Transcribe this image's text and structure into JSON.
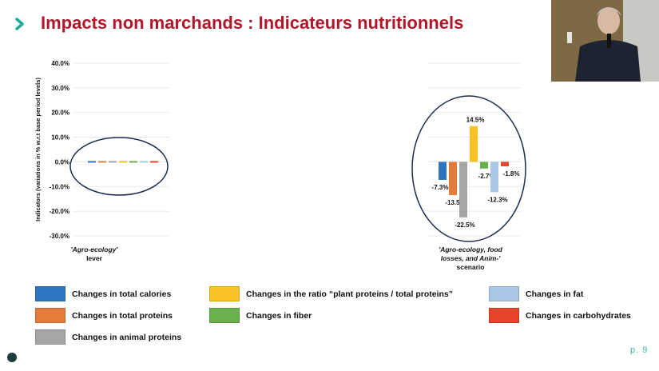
{
  "slide": {
    "title": "Impacts non marchands : Indicateurs nutritionnels",
    "page_number": "p. 9",
    "video_inset": "presenter camera"
  },
  "chart_data": [
    {
      "type": "bar",
      "ylabel": "Indicators (variations in % w.r.t base period levels)",
      "yticks": [
        "40.0%",
        "30.0%",
        "20.0%",
        "10.0%",
        "0.0%",
        "-10.0%",
        "-20.0%",
        "-30.0%"
      ],
      "ylim": [
        -30,
        40
      ],
      "category": "'Agro-ecology' lever",
      "grid": true,
      "series": [
        {
          "name": "Changes in total calories",
          "value": 0
        },
        {
          "name": "Changes in total proteins",
          "value": 0
        },
        {
          "name": "Changes in animal proteins",
          "value": 0
        },
        {
          "name": "Changes in the ratio “plant proteins / total proteins”",
          "value": 0
        },
        {
          "name": "Changes in fiber",
          "value": 0
        },
        {
          "name": "Changes in fat",
          "value": 0
        },
        {
          "name": "Changes in carbohydrates",
          "value": 0
        }
      ]
    },
    {
      "type": "bar",
      "ylim": [
        -30,
        40
      ],
      "category": "'Agro-ecology, food losses, and Anim-' scenario",
      "grid": true,
      "series": [
        {
          "name": "Changes in total calories",
          "value": -7.3,
          "label": "-7.3%"
        },
        {
          "name": "Changes in total proteins",
          "value": -13.5,
          "label": "-13.5%"
        },
        {
          "name": "Changes in animal proteins",
          "value": -22.5,
          "label": "-22.5%"
        },
        {
          "name": "Changes in the ratio “plant proteins / total proteins”",
          "value": 14.5,
          "label": "14.5%"
        },
        {
          "name": "Changes in fiber",
          "value": -2.7,
          "label": "-2.7%"
        },
        {
          "name": "Changes in fat",
          "value": -12.3,
          "label": "-12.3%"
        },
        {
          "name": "Changes in carbohydrates",
          "value": -1.8,
          "label": "-1.8%"
        }
      ]
    }
  ],
  "legend": [
    {
      "label": "Changes in total calories",
      "color": "#2e75c0"
    },
    {
      "label": "Changes in total proteins",
      "color": "#e57b3a"
    },
    {
      "label": "Changes in animal proteins",
      "color": "#a5a5a5"
    },
    {
      "label": "Changes in the ratio “plant proteins / total proteins”",
      "color": "#f9c125"
    },
    {
      "label": "Changes in fiber",
      "color": "#6ab04c"
    },
    {
      "label": "Changes in fat",
      "color": "#a9c8e8"
    },
    {
      "label": "Changes in carbohydrates",
      "color": "#e5452b"
    }
  ]
}
